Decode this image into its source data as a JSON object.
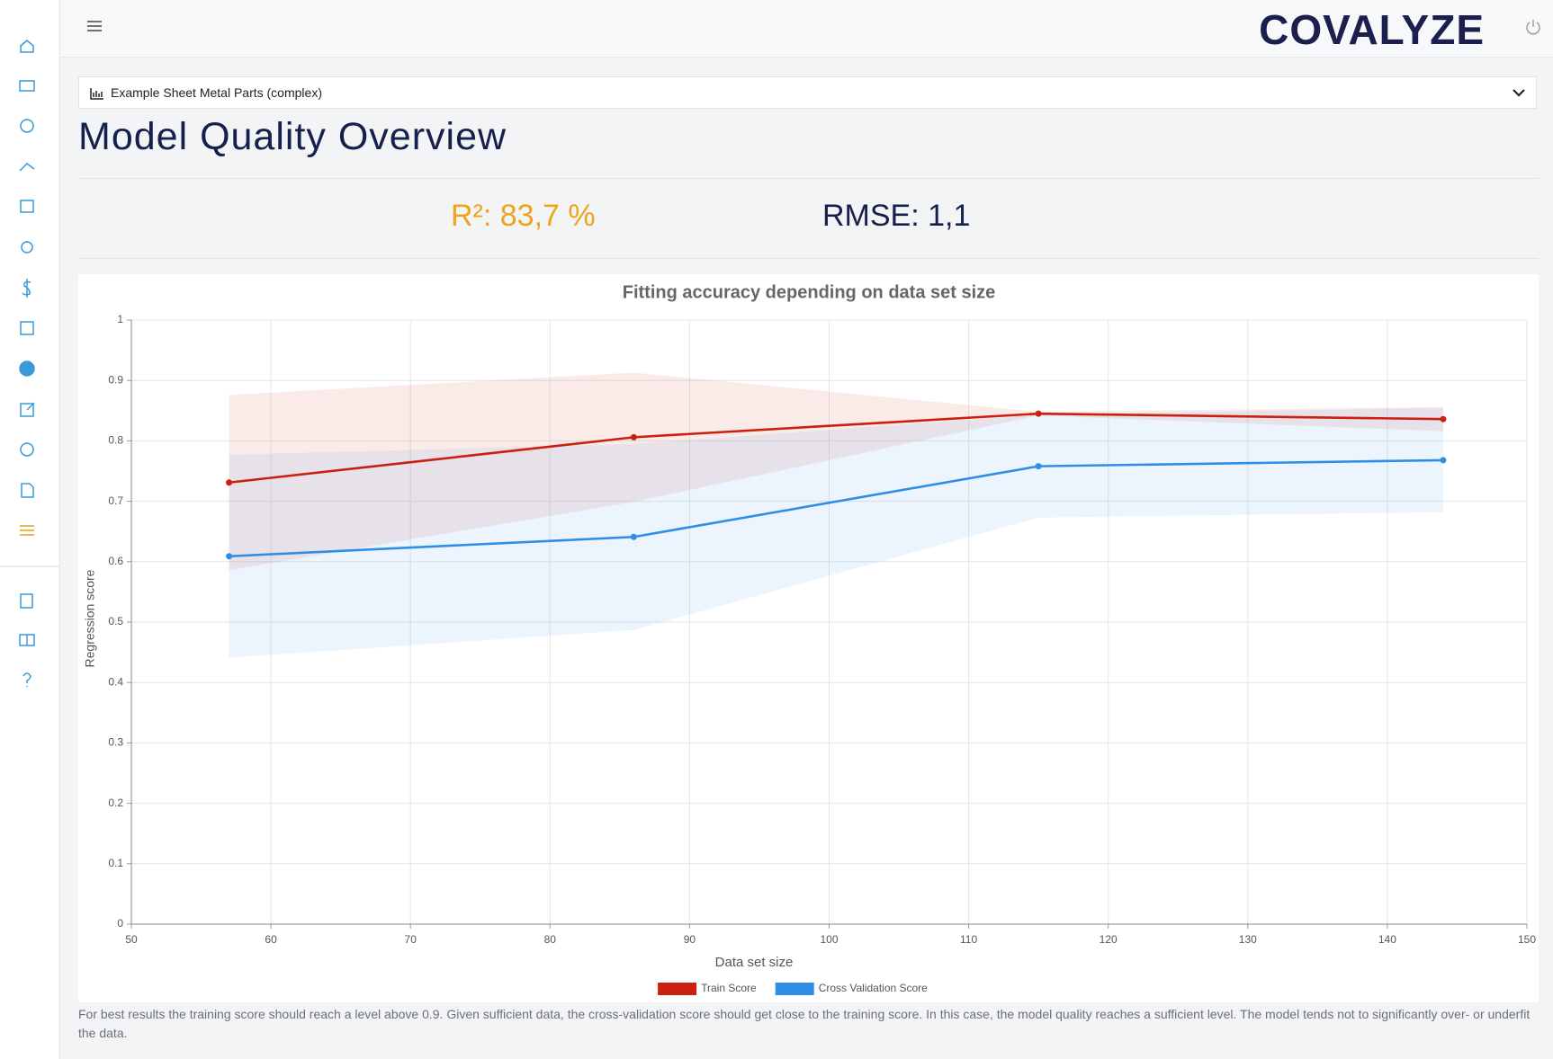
{
  "header": {
    "logo": "COVALYZE"
  },
  "dropdown": {
    "label": "Example Sheet Metal Parts (complex)"
  },
  "page_title": "Model Quality Overview",
  "metrics": {
    "r2": "R²: 83,7 %",
    "rmse": "RMSE: 1,1"
  },
  "chart_data": {
    "type": "line",
    "title": "Fitting accuracy depending on data set size",
    "x_label": "Data set size",
    "y_label": "Regression score",
    "x": [
      57,
      86,
      115,
      144
    ],
    "series": [
      {
        "name": "Train Score",
        "color": "#cc1f0f",
        "values": [
          0.731,
          0.806,
          0.845,
          0.836
        ],
        "band_upper": [
          0.876,
          0.913,
          0.848,
          0.856
        ],
        "band_lower": [
          0.586,
          0.699,
          0.842,
          0.816
        ]
      },
      {
        "name": "Cross Validation Score",
        "color": "#2e8ee6",
        "values": [
          0.609,
          0.641,
          0.758,
          0.768
        ],
        "band_upper": [
          0.777,
          0.795,
          0.843,
          0.855
        ],
        "band_lower": [
          0.441,
          0.487,
          0.673,
          0.682
        ]
      }
    ],
    "xlim": [
      50,
      150
    ],
    "xticks": [
      50,
      60,
      70,
      80,
      90,
      100,
      110,
      120,
      130,
      140,
      150
    ],
    "ylim": [
      0,
      1
    ],
    "yticks": [
      0,
      0.1,
      0.2,
      0.3,
      0.4,
      0.5,
      0.6,
      0.7,
      0.8,
      0.9,
      1
    ],
    "grid": true,
    "legend": "bottom"
  },
  "note": "For best results the training score should reach a level above 0.9. Given sufficient data, the cross-validation score should get close to the training score. In this case, the model quality reaches a sufficient level. The model tends not to significantly over- or underfit the data."
}
